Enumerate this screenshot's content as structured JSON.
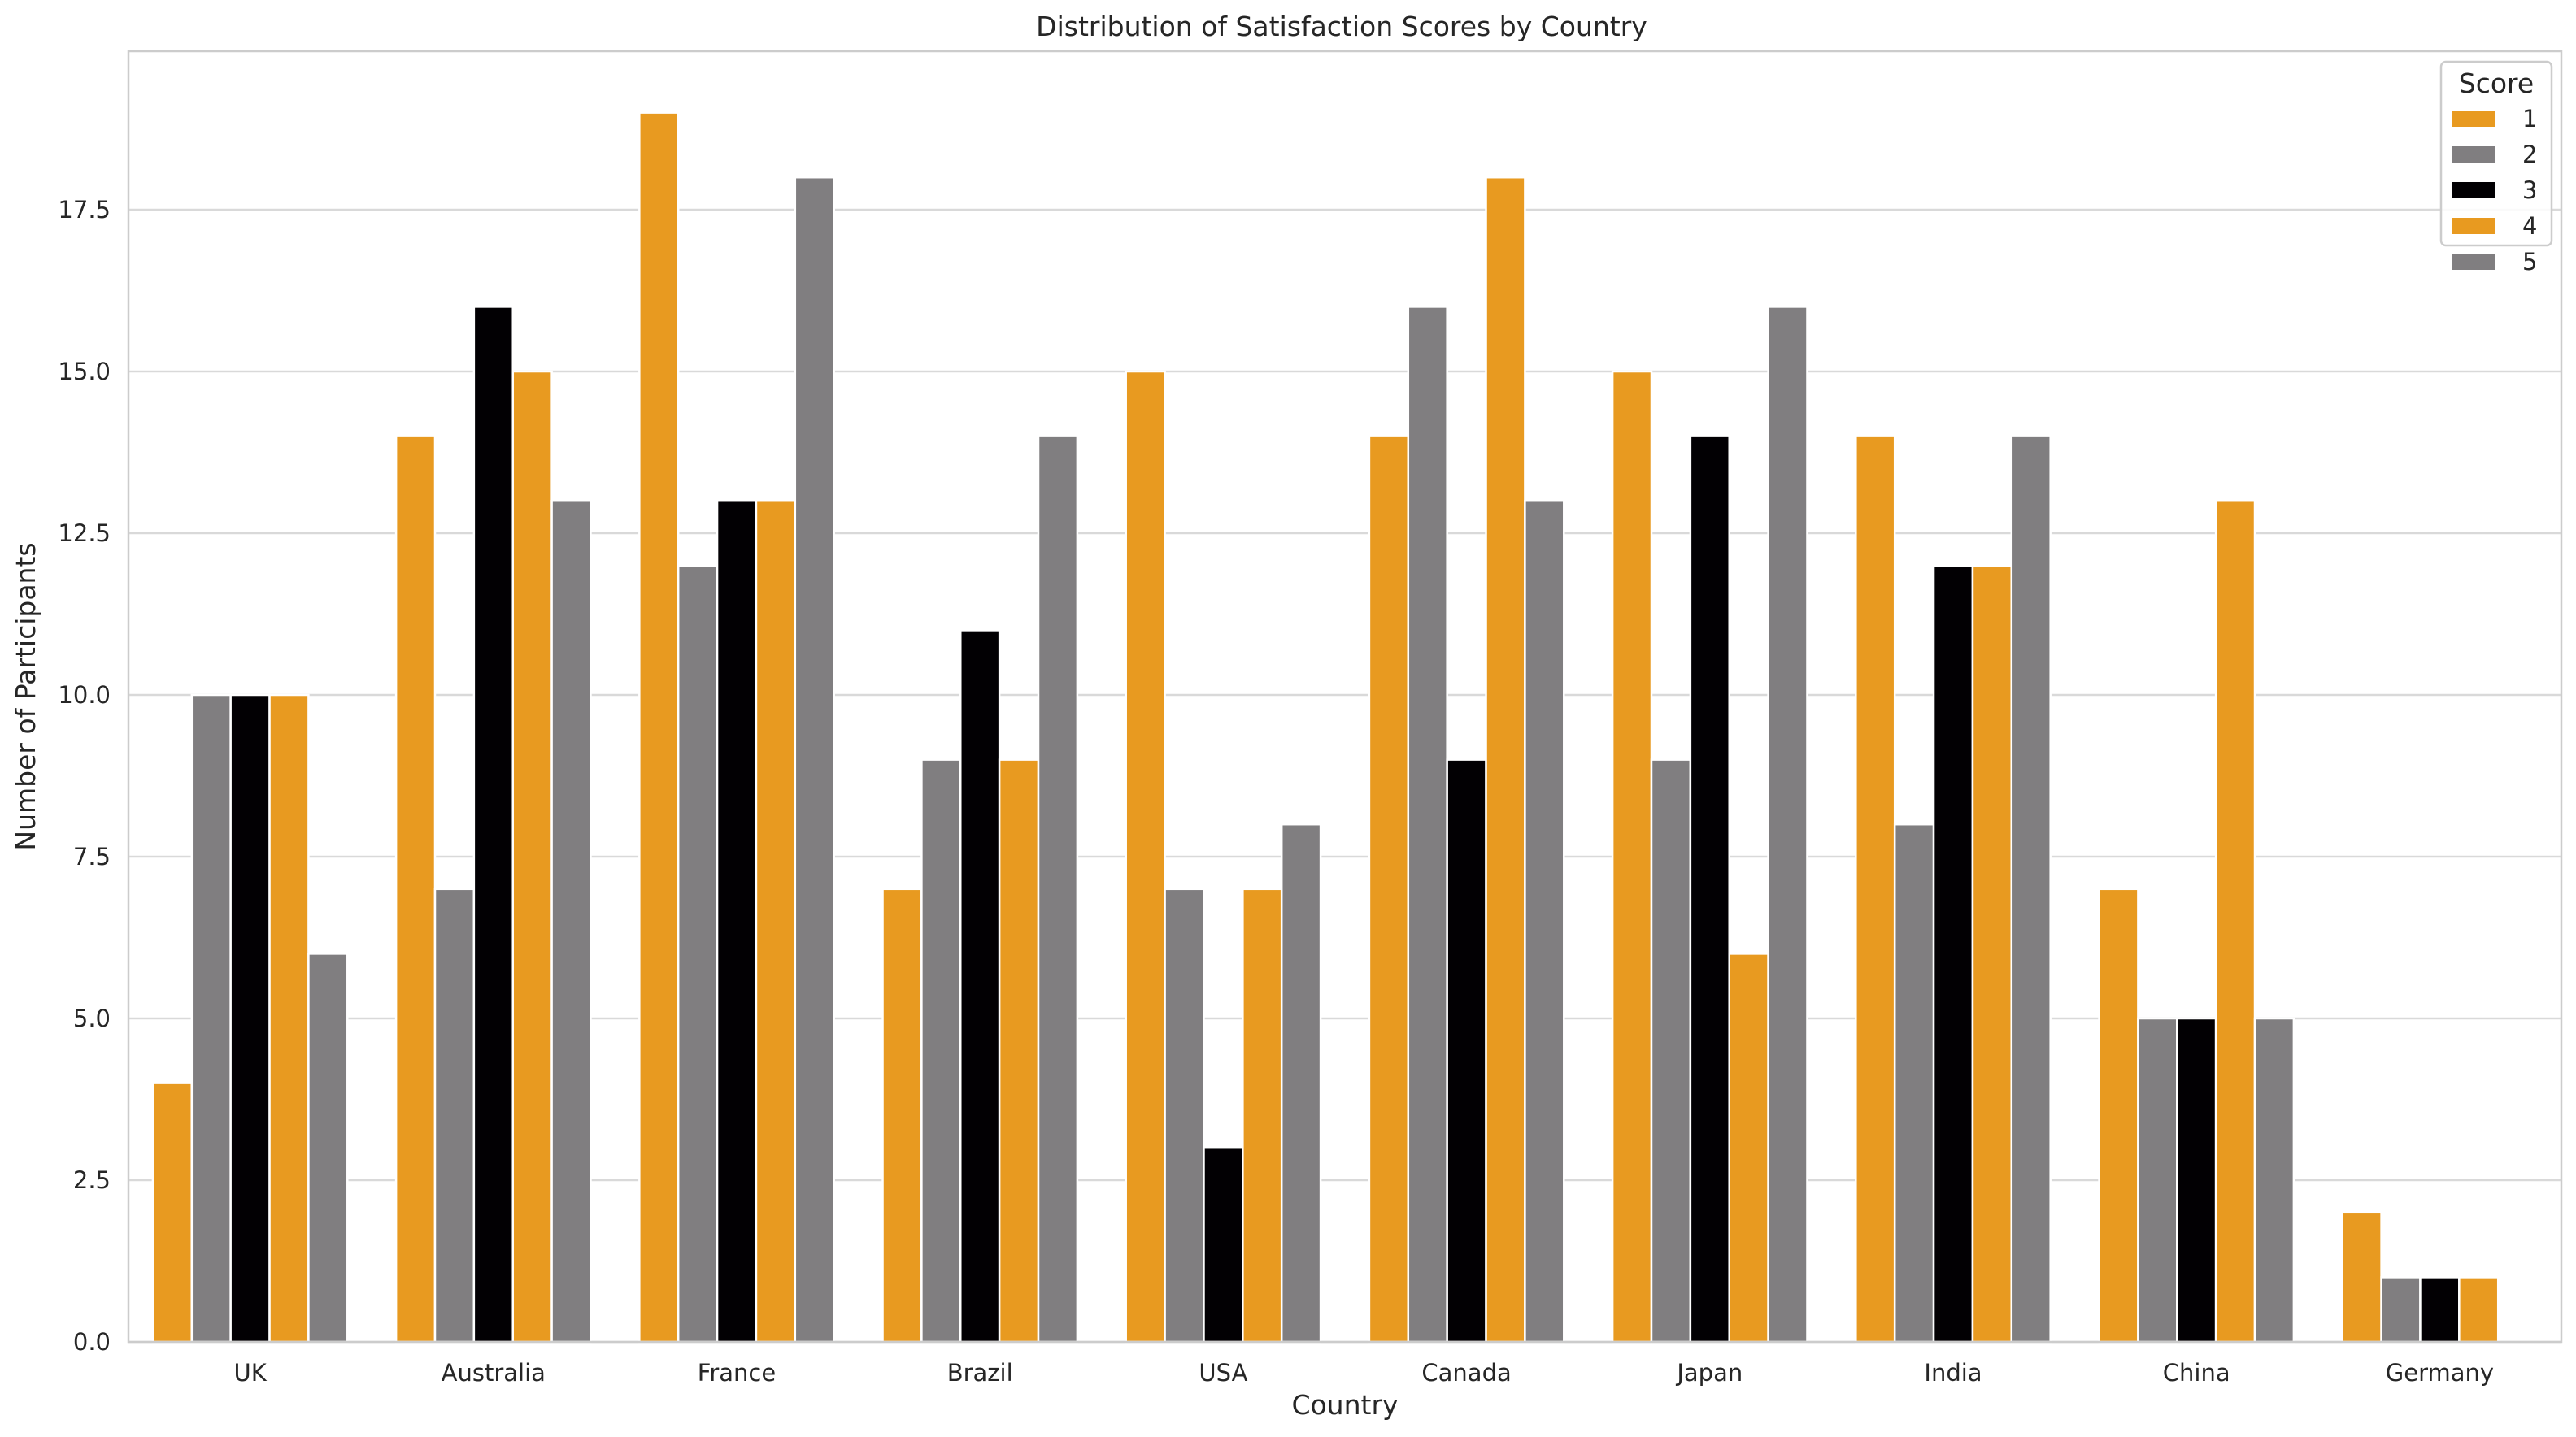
{
  "chart_data": {
    "type": "bar",
    "title": "Distribution of Satisfaction Scores by Country",
    "xlabel": "Country",
    "ylabel": "Number of Participants",
    "ylim": [
      0,
      19.95
    ],
    "yticks": [
      0.0,
      2.5,
      5.0,
      7.5,
      10.0,
      12.5,
      15.0,
      17.5
    ],
    "ytick_labels": [
      "0.0",
      "2.5",
      "5.0",
      "7.5",
      "10.0",
      "12.5",
      "15.0",
      "17.5"
    ],
    "grid": true,
    "categories": [
      "UK",
      "Australia",
      "France",
      "Brazil",
      "USA",
      "Canada",
      "Japan",
      "India",
      "China",
      "Germany"
    ],
    "legend": {
      "title": "Score",
      "placement": "top-right"
    },
    "series": [
      {
        "name": "1",
        "color": "#E89A20",
        "values": [
          4,
          14,
          19,
          7,
          15,
          14,
          15,
          14,
          7,
          2
        ]
      },
      {
        "name": "2",
        "color": "#807E80",
        "values": [
          10,
          7,
          12,
          9,
          7,
          16,
          9,
          8,
          5,
          1
        ]
      },
      {
        "name": "3",
        "color": "#020003",
        "values": [
          10,
          16,
          13,
          11,
          3,
          9,
          14,
          12,
          5,
          1
        ]
      },
      {
        "name": "4",
        "color": "#E89A20",
        "values": [
          10,
          15,
          13,
          9,
          7,
          18,
          6,
          12,
          13,
          1
        ]
      },
      {
        "name": "5",
        "color": "#807E80",
        "values": [
          6,
          13,
          18,
          14,
          8,
          13,
          16,
          14,
          5,
          0
        ]
      }
    ]
  }
}
